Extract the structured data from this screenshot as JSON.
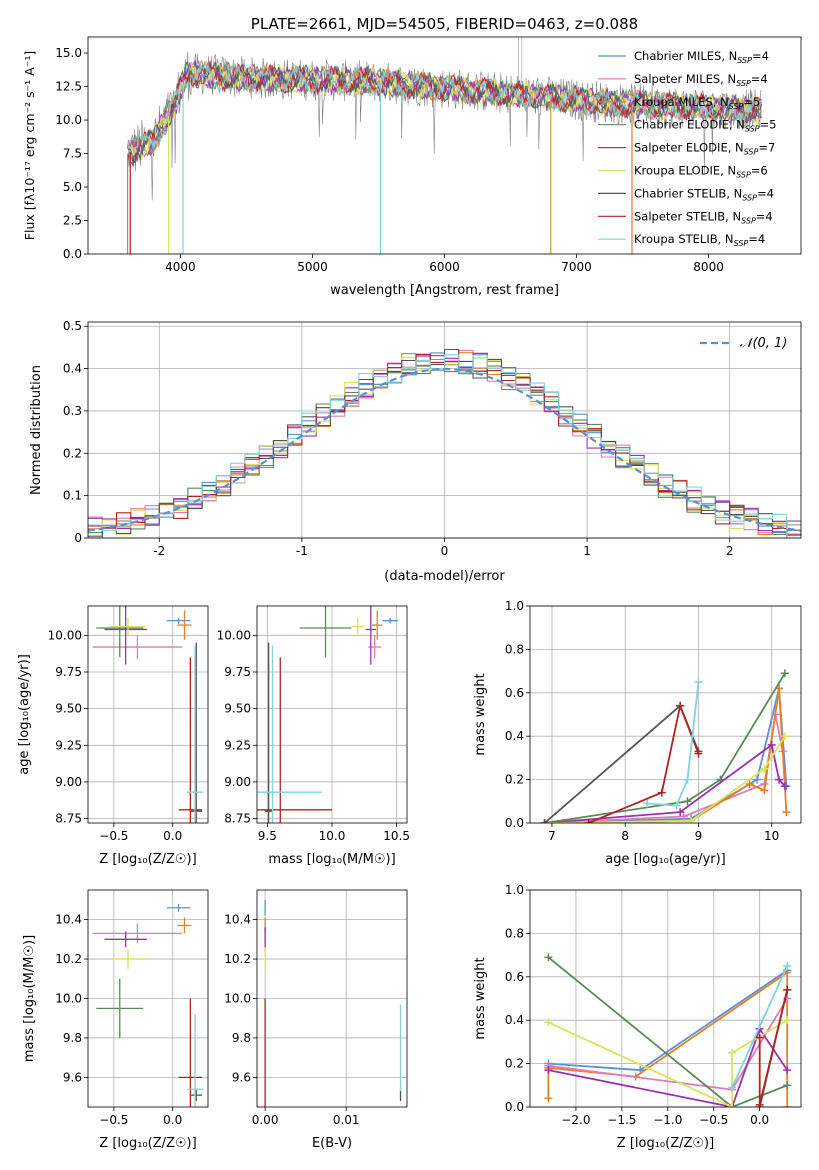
{
  "chart_data": [
    {
      "id": "spectrum",
      "type": "line",
      "title": "PLATE=2661, MJD=54505, FIBERID=0463, z=0.088",
      "xlabel": "wavelength [Angstrom, rest frame]",
      "ylabel": "Flux [f_λ 10^-17 erg cm^-2 s^-1 A^-1]",
      "xlim": [
        3300,
        8700
      ],
      "ylim": [
        0,
        16.2
      ],
      "xticks": [
        4000,
        5000,
        6000,
        7000,
        8000
      ],
      "yticks": [
        0.0,
        2.5,
        5.0,
        7.5,
        10.0,
        12.5,
        15.0
      ],
      "ytick_labels": [
        "0.0",
        "2.5",
        "5.0",
        "7.5",
        "10.0",
        "12.5",
        "15.0"
      ],
      "legend_position": "top-right",
      "continuum": [
        [
          3600,
          7.5
        ],
        [
          3800,
          8.5
        ],
        [
          3950,
          11.0
        ],
        [
          4050,
          13.5
        ],
        [
          4300,
          13.3
        ],
        [
          4600,
          13.1
        ],
        [
          5000,
          13.0
        ],
        [
          5400,
          12.9
        ],
        [
          5800,
          12.6
        ],
        [
          6200,
          12.2
        ],
        [
          6600,
          11.9
        ],
        [
          7000,
          11.5
        ],
        [
          7400,
          11.2
        ],
        [
          7800,
          11.0
        ],
        [
          8200,
          10.8
        ],
        [
          8400,
          10.7
        ]
      ],
      "spikes": [
        {
          "x": 3600,
          "color": "#e07b39"
        },
        {
          "x": 3620,
          "color": "#b22222"
        },
        {
          "x": 3910,
          "color": "#d9e45b"
        },
        {
          "x": 4020,
          "color": "#7fd3d9"
        },
        {
          "x": 5515,
          "color": "#7fd3d9"
        },
        {
          "x": 6805,
          "color": "#c8a028"
        },
        {
          "x": 7420,
          "color": "#e07b39"
        }
      ],
      "series": [
        {
          "name": "Chabrier MILES, N$_{SSP}$=4",
          "color": "#5b8fd6"
        },
        {
          "name": "Salpeter MILES, N$_{SSP}$=4",
          "color": "#e07bb5"
        },
        {
          "name": "Kroupa MILES, N$_{SSP}$=5",
          "color": "#e67e22"
        },
        {
          "name": "Chabrier ELODIE, N$_{SSP}$=5",
          "color": "#5a8a5a"
        },
        {
          "name": "Salpeter ELODIE, N$_{SSP}$=7",
          "color": "#9b30b0"
        },
        {
          "name": "Kroupa ELODIE, N$_{SSP}$=6",
          "color": "#d9e45b"
        },
        {
          "name": "Chabrier STELIB, N$_{SSP}$=4",
          "color": "#555555"
        },
        {
          "name": "Salpeter STELIB, N$_{SSP}$=4",
          "color": "#b22222"
        },
        {
          "name": "Kroupa STELIB, N$_{SSP}$=4",
          "color": "#7fd3d9"
        }
      ]
    },
    {
      "id": "residuals",
      "type": "line",
      "xlabel": "(data-model)/error",
      "ylabel": "Normed distribution",
      "xlim": [
        -2.5,
        2.5
      ],
      "ylim": [
        0,
        0.51
      ],
      "xticks": [
        -2,
        -1,
        0,
        1,
        2
      ],
      "yticks": [
        0.0,
        0.1,
        0.2,
        0.3,
        0.4,
        0.5
      ],
      "grid": true,
      "legend_position": "top-right",
      "reference_curve": {
        "name": "𝒩(0, 1)",
        "color": "#5b8fd6",
        "style": "dashed"
      },
      "histogram_bin_width": 0.1
    },
    {
      "id": "age-vs-Z",
      "type": "scatter",
      "xlabel": "Z [log₁₀(Z/Z☉)]",
      "ylabel": "age  [log₁₀(age/yr)]",
      "xlim": [
        -0.72,
        0.3
      ],
      "ylim": [
        8.72,
        10.2
      ],
      "xticks": [
        -0.5,
        0.0
      ],
      "xtick_labels": [
        "−0.5",
        "0.0"
      ],
      "yticks": [
        8.75,
        9.0,
        9.25,
        9.5,
        9.75,
        10.0
      ],
      "ytick_labels": [
        "8.75",
        "9.00",
        "9.25",
        "9.50",
        "9.75",
        "10.00"
      ],
      "grid": true,
      "points": [
        {
          "color": "#5b8fd6",
          "x": 0.05,
          "y": 10.1,
          "xerr": 0.1,
          "yerr": 0.02
        },
        {
          "color": "#e07bb5",
          "x": -0.3,
          "y": 9.92,
          "xerr": 0.38,
          "yerr": 0.08
        },
        {
          "color": "#e67e22",
          "x": 0.1,
          "y": 10.07,
          "xerr": 0.06,
          "yerr": 0.1
        },
        {
          "color": "#5a8a5a",
          "x": -0.45,
          "y": 10.05,
          "xerr": 0.2,
          "yerr": 0.2
        },
        {
          "color": "#9b30b0",
          "x": -0.4,
          "y": 10.04,
          "xerr": 0.18,
          "yerr": 0.24
        },
        {
          "color": "#d9e45b",
          "x": -0.38,
          "y": 10.06,
          "xerr": 0.15,
          "yerr": 0.06
        },
        {
          "color": "#555555",
          "x": 0.2,
          "y": 8.8,
          "xerr": 0.05,
          "yerr": 1.15
        },
        {
          "color": "#b22222",
          "x": 0.15,
          "y": 8.81,
          "xerr": 0.1,
          "yerr": 1.04
        },
        {
          "color": "#7fd3d9",
          "x": 0.19,
          "y": 8.93,
          "xerr": 0.07,
          "yerr": 1.0
        }
      ]
    },
    {
      "id": "age-vs-mass",
      "type": "scatter",
      "xlabel": "mass [log₁₀(M/M☉)]",
      "xlim": [
        9.42,
        10.58
      ],
      "ylim": [
        8.72,
        10.2
      ],
      "xticks": [
        9.5,
        10.0,
        10.5
      ],
      "xtick_labels": [
        "9.5",
        "10.0",
        "10.5"
      ],
      "yticks": [
        8.75,
        9.0,
        9.25,
        9.5,
        9.75,
        10.0
      ],
      "ytick_labels": [
        "8.75",
        "9.00",
        "9.25",
        "9.50",
        "9.75",
        "10.00"
      ],
      "grid": true,
      "points": [
        {
          "color": "#5b8fd6",
          "x": 10.45,
          "y": 10.1,
          "xerr": 0.06,
          "yerr": 0.02
        },
        {
          "color": "#e07bb5",
          "x": 10.33,
          "y": 9.92,
          "xerr": 0.05,
          "yerr": 0.08
        },
        {
          "color": "#e67e22",
          "x": 10.35,
          "y": 10.07,
          "xerr": 0.04,
          "yerr": 0.1
        },
        {
          "color": "#5a8a5a",
          "x": 9.95,
          "y": 10.05,
          "xerr": 0.2,
          "yerr": 0.2
        },
        {
          "color": "#9b30b0",
          "x": 10.3,
          "y": 10.04,
          "xerr": 0.04,
          "yerr": 0.24
        },
        {
          "color": "#d9e45b",
          "x": 10.2,
          "y": 10.06,
          "xerr": 0.05,
          "yerr": 0.06
        },
        {
          "color": "#555555",
          "x": 9.51,
          "y": 8.8,
          "xerr": 0.03,
          "yerr": 1.15
        },
        {
          "color": "#b22222",
          "x": 9.6,
          "y": 8.81,
          "xerr": 0.4,
          "yerr": 1.04
        },
        {
          "color": "#7fd3d9",
          "x": 9.54,
          "y": 8.93,
          "xerr": 0.38,
          "yerr": 1.0
        }
      ]
    },
    {
      "id": "mass-weight-vs-age",
      "type": "line",
      "xlabel": "age  [log₁₀(age/yr)]",
      "ylabel": "mass weight",
      "xlim": [
        6.7,
        10.4
      ],
      "ylim": [
        0,
        1.0
      ],
      "xticks": [
        7,
        8,
        9,
        10
      ],
      "xtick_labels": [
        "7",
        "8",
        "9",
        "10"
      ],
      "yticks": [
        0.0,
        0.2,
        0.4,
        0.6,
        0.8,
        1.0
      ],
      "ytick_labels": [
        "0.0",
        "0.2",
        "0.4",
        "0.6",
        "0.8",
        "1.0"
      ],
      "grid": true,
      "series": [
        {
          "color": "#5b8fd6",
          "x": [
            6.9,
            8.9,
            9.8,
            10.1,
            10.2
          ],
          "y": [
            0.0,
            0.02,
            0.2,
            0.62,
            0.17
          ]
        },
        {
          "color": "#e07bb5",
          "x": [
            6.9,
            8.8,
            9.9,
            10.05,
            10.15
          ],
          "y": [
            0.0,
            0.03,
            0.18,
            0.5,
            0.33
          ]
        },
        {
          "color": "#e67e22",
          "x": [
            6.9,
            8.9,
            9.7,
            9.9,
            10.1,
            10.2
          ],
          "y": [
            0.0,
            0.01,
            0.18,
            0.15,
            0.62,
            0.05
          ]
        },
        {
          "color": "#5a8a5a",
          "x": [
            6.9,
            8.85,
            9.3,
            10.18
          ],
          "y": [
            0.0,
            0.1,
            0.2,
            0.69
          ]
        },
        {
          "color": "#9b30b0",
          "x": [
            6.9,
            8.75,
            10.0,
            10.1,
            10.18
          ],
          "y": [
            0.0,
            0.05,
            0.36,
            0.2,
            0.17
          ]
        },
        {
          "color": "#d9e45b",
          "x": [
            6.9,
            8.9,
            9.9,
            10.18
          ],
          "y": [
            0.0,
            0.01,
            0.25,
            0.4
          ]
        },
        {
          "color": "#555555",
          "x": [
            6.9,
            8.75,
            9.0
          ],
          "y": [
            0.0,
            0.54,
            0.33
          ]
        },
        {
          "color": "#b22222",
          "x": [
            7.5,
            8.5,
            8.75,
            9.0
          ],
          "y": [
            0.0,
            0.14,
            0.54,
            0.32
          ]
        },
        {
          "color": "#7fd3d9",
          "x": [
            8.3,
            8.7,
            8.85,
            9.0
          ],
          "y": [
            0.09,
            0.08,
            0.2,
            0.65
          ]
        }
      ]
    },
    {
      "id": "mass-vs-Z",
      "type": "scatter",
      "xlabel": "Z [log₁₀(Z/Z☉)]",
      "ylabel": "mass [log₁₀(M/M☉)]",
      "xlim": [
        -0.72,
        0.3
      ],
      "ylim": [
        9.45,
        10.55
      ],
      "xticks": [
        -0.5,
        0.0
      ],
      "xtick_labels": [
        "−0.5",
        "0.0"
      ],
      "yticks": [
        9.6,
        9.8,
        10.0,
        10.2,
        10.4
      ],
      "ytick_labels": [
        "9.6",
        "9.8",
        "10.0",
        "10.2",
        "10.4"
      ],
      "grid": true,
      "points": [
        {
          "color": "#5b8fd6",
          "x": 0.05,
          "y": 10.46,
          "xerr": 0.1,
          "yerr": 0.02
        },
        {
          "color": "#e07bb5",
          "x": -0.3,
          "y": 10.33,
          "xerr": 0.38,
          "yerr": 0.05
        },
        {
          "color": "#e67e22",
          "x": 0.1,
          "y": 10.37,
          "xerr": 0.06,
          "yerr": 0.04
        },
        {
          "color": "#5a8a5a",
          "x": -0.45,
          "y": 9.95,
          "xerr": 0.2,
          "yerr": 0.15
        },
        {
          "color": "#9b30b0",
          "x": -0.4,
          "y": 10.3,
          "xerr": 0.18,
          "yerr": 0.04
        },
        {
          "color": "#d9e45b",
          "x": -0.38,
          "y": 10.2,
          "xerr": 0.15,
          "yerr": 0.05
        },
        {
          "color": "#555555",
          "x": 0.2,
          "y": 9.51,
          "xerr": 0.05,
          "yerr": 0.03
        },
        {
          "color": "#b22222",
          "x": 0.15,
          "y": 9.6,
          "xerr": 0.1,
          "yerr": 0.4
        },
        {
          "color": "#7fd3d9",
          "x": 0.19,
          "y": 9.54,
          "xerr": 0.07,
          "yerr": 0.38
        }
      ]
    },
    {
      "id": "mass-vs-EBV",
      "type": "scatter",
      "xlabel": "E(B-V)",
      "xlim": [
        -0.001,
        0.0175
      ],
      "ylim": [
        9.45,
        10.55
      ],
      "xticks": [
        0.0,
        0.01
      ],
      "xtick_labels": [
        "0.00",
        "0.01"
      ],
      "yticks": [
        9.6,
        9.8,
        10.0,
        10.2,
        10.4
      ],
      "ytick_labels": [
        "9.6",
        "9.8",
        "10.0",
        "10.2",
        "10.4"
      ],
      "grid": true,
      "points": [
        {
          "color": "#5b8fd6",
          "x": 0.0,
          "y": 10.46,
          "xerr": 0.0,
          "yerr": 0.04
        },
        {
          "color": "#e07bb5",
          "x": 0.0,
          "y": 10.33,
          "xerr": 0.0,
          "yerr": 0.05
        },
        {
          "color": "#e67e22",
          "x": 0.0,
          "y": 10.37,
          "xerr": 0.0,
          "yerr": 0.04
        },
        {
          "color": "#9b30b0",
          "x": 0.0,
          "y": 10.3,
          "xerr": 0.0,
          "yerr": 0.06
        },
        {
          "color": "#d9e45b",
          "x": 0.0,
          "y": 10.2,
          "xerr": 0.0,
          "yerr": 0.06
        },
        {
          "color": "#b22222",
          "x": 0.0,
          "y": 9.6,
          "xerr": 0.0,
          "yerr": 0.4
        },
        {
          "color": "#555555",
          "x": 0.0167,
          "y": 9.51,
          "xerr": 0.0,
          "yerr": 0.03
        },
        {
          "color": "#7fd3d9",
          "x": 0.0167,
          "y": 9.75,
          "xerr": 0.0,
          "yerr": 0.22
        }
      ]
    },
    {
      "id": "mass-weight-vs-Z",
      "type": "line",
      "xlabel": "Z [log₁₀(Z/Z☉)]",
      "ylabel": "mass weight",
      "xlim": [
        -2.5,
        0.45
      ],
      "ylim": [
        0,
        1.0
      ],
      "xticks": [
        -2.0,
        -1.5,
        -1.0,
        -0.5,
        0.0
      ],
      "xtick_labels": [
        "−2.0",
        "−1.5",
        "−1.0",
        "−0.5",
        "0.0"
      ],
      "yticks": [
        0.0,
        0.2,
        0.4,
        0.6,
        0.8,
        1.0
      ],
      "ytick_labels": [
        "0.0",
        "0.2",
        "0.4",
        "0.6",
        "0.8",
        "1.0"
      ],
      "grid": true,
      "series": [
        {
          "color": "#5b8fd6",
          "x": [
            -2.3,
            -1.3,
            0.3
          ],
          "y": [
            0.2,
            0.17,
            0.63
          ]
        },
        {
          "color": "#e67e22",
          "x": [
            -2.3,
            -2.3,
            -1.35,
            0.3,
            0.3
          ],
          "y": [
            0.04,
            0.18,
            0.14,
            0.62,
            0.0
          ]
        },
        {
          "color": "#e07bb5",
          "x": [
            -2.3,
            -0.3,
            0.3
          ],
          "y": [
            0.19,
            0.08,
            0.5
          ]
        },
        {
          "color": "#5a8a5a",
          "x": [
            -2.3,
            -0.3,
            0.3
          ],
          "y": [
            0.69,
            0.0,
            0.1
          ]
        },
        {
          "color": "#9b30b0",
          "x": [
            -2.3,
            -0.3,
            0.0,
            0.3
          ],
          "y": [
            0.17,
            0.0,
            0.36,
            0.17
          ]
        },
        {
          "color": "#d9e45b",
          "x": [
            -2.3,
            -0.3,
            -0.3,
            0.3
          ],
          "y": [
            0.39,
            0.0,
            0.25,
            0.4
          ]
        },
        {
          "color": "#555555",
          "x": [
            0.0,
            0.3
          ],
          "y": [
            0.0,
            0.54
          ]
        },
        {
          "color": "#b22222",
          "x": [
            0.0,
            0.0,
            0.3
          ],
          "y": [
            0.32,
            0.01,
            0.54
          ]
        },
        {
          "color": "#7fd3d9",
          "x": [
            -0.3,
            0.3
          ],
          "y": [
            0.09,
            0.65
          ]
        }
      ]
    }
  ]
}
